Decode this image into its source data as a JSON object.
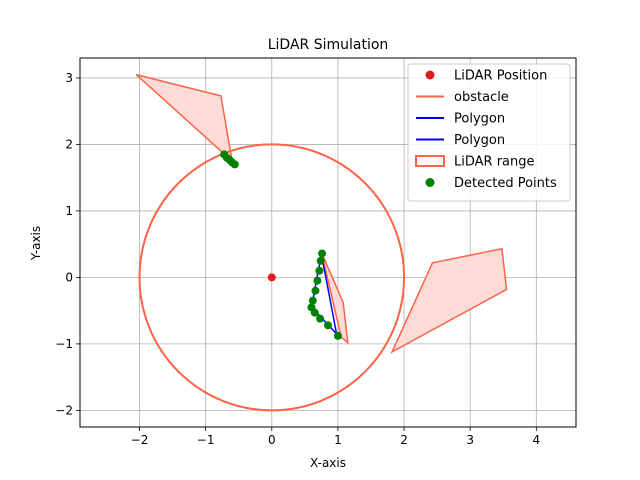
{
  "chart_data": {
    "type": "scatter",
    "title": "LiDAR Simulation",
    "xlabel": "X-axis",
    "ylabel": "Y-axis",
    "xlim": [
      -2.9,
      4.6
    ],
    "ylim": [
      -2.25,
      3.3
    ],
    "xticks": [
      -2,
      -1,
      0,
      1,
      2,
      3,
      4
    ],
    "yticks": [
      -2,
      -1,
      0,
      1,
      2,
      3
    ],
    "grid": true,
    "legend_position": "upper right",
    "lidar_position": {
      "x": 0,
      "y": 0
    },
    "lidar_range": 2,
    "obstacles": [
      [
        [
          -2.05,
          3.05
        ],
        [
          -0.77,
          2.73
        ],
        [
          -0.6,
          1.75
        ]
      ],
      [
        [
          0.75,
          0.38
        ],
        [
          1.08,
          -0.38
        ],
        [
          1.15,
          -0.98
        ],
        [
          1.05,
          -0.9
        ]
      ],
      [
        [
          2.43,
          0.22
        ],
        [
          3.48,
          0.43
        ],
        [
          3.55,
          -0.18
        ],
        [
          1.82,
          -1.12
        ]
      ]
    ],
    "polygons": [
      [
        [
          -0.72,
          1.85
        ],
        [
          -0.55,
          1.72
        ],
        [
          -0.55,
          1.7
        ]
      ],
      [
        [
          0.75,
          0.35
        ],
        [
          0.6,
          -0.45
        ],
        [
          0.7,
          -0.55
        ],
        [
          0.98,
          -0.85
        ]
      ]
    ],
    "detected_points": [
      [
        -0.72,
        1.85
      ],
      [
        -0.68,
        1.8
      ],
      [
        -0.64,
        1.77
      ],
      [
        -0.6,
        1.73
      ],
      [
        -0.56,
        1.7
      ],
      [
        0.76,
        0.36
      ],
      [
        0.74,
        0.25
      ],
      [
        0.72,
        0.1
      ],
      [
        0.69,
        -0.05
      ],
      [
        0.66,
        -0.2
      ],
      [
        0.62,
        -0.35
      ],
      [
        0.6,
        -0.45
      ],
      [
        0.65,
        -0.53
      ],
      [
        0.73,
        -0.62
      ],
      [
        0.85,
        -0.72
      ],
      [
        1.0,
        -0.88
      ]
    ],
    "legend": [
      {
        "label": "LiDAR Position",
        "kind": "marker",
        "color": "#e31a1c"
      },
      {
        "label": "obstacle",
        "kind": "line",
        "color": "#ff6347"
      },
      {
        "label": "Polygon",
        "kind": "line",
        "color": "#0000ff"
      },
      {
        "label": "Polygon",
        "kind": "line",
        "color": "#0000ff"
      },
      {
        "label": "LiDAR range",
        "kind": "patch",
        "color": "#ff6347"
      },
      {
        "label": "Detected Points",
        "kind": "marker",
        "color": "#008000"
      }
    ],
    "colors": {
      "lidar": "#e31a1c",
      "obstacle_edge": "#ff6347",
      "obstacle_fill": "#fddbd6",
      "polygon": "#0000ff",
      "range": "#ff6347",
      "detected": "#008000",
      "grid": "#b0b0b0"
    }
  }
}
